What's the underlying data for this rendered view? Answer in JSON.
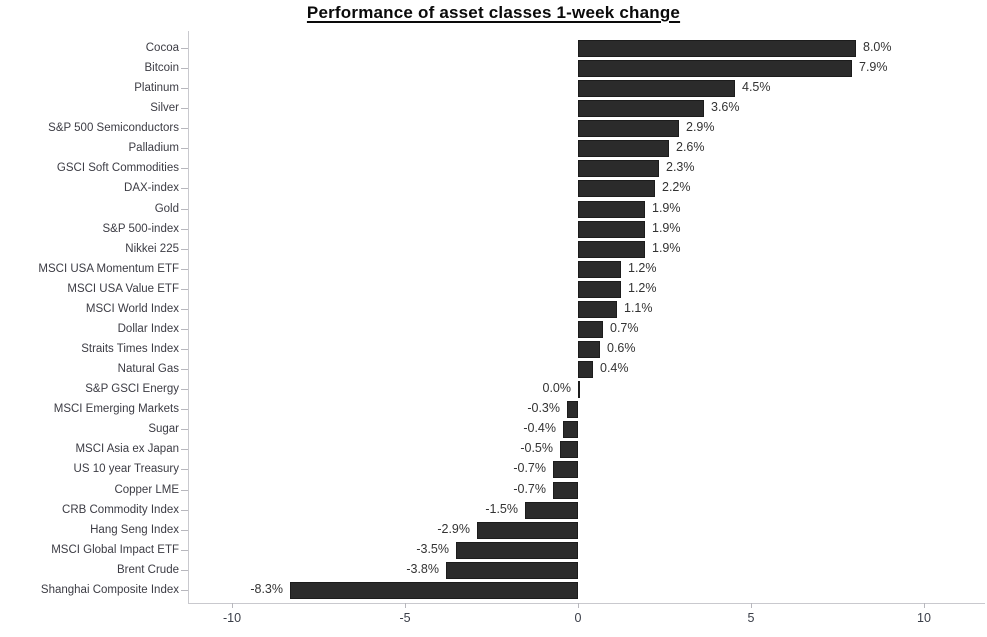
{
  "chart_data": {
    "type": "bar",
    "orientation": "horizontal",
    "title": "Performance of asset classes 1-week change",
    "xlabel": "",
    "ylabel": "",
    "xlim": [
      -11.3,
      11.8
    ],
    "x_ticks": [
      -10,
      -5,
      0,
      5,
      10
    ],
    "x_tick_labels": [
      "-10",
      "-5",
      "0",
      "5",
      "10"
    ],
    "grid": false,
    "legend": "none",
    "bar_color": "#2b2b2b",
    "bar_border_color": "#1c1c1c",
    "axis_color": "#c9c9ce",
    "categories": [
      "Cocoa",
      "Bitcoin",
      "Platinum",
      "Silver",
      "S&P 500 Semiconductors",
      "Palladium",
      "GSCI Soft Commodities",
      "DAX-index",
      "Gold",
      "S&P 500-index",
      "Nikkei 225",
      "MSCI USA Momentum ETF",
      "MSCI USA Value ETF",
      "MSCI World Index",
      "Dollar Index",
      "Straits Times Index",
      "Natural Gas",
      "S&P GSCI Energy",
      "MSCI Emerging Markets",
      "Sugar",
      "MSCI Asia ex Japan",
      "US 10 year Treasury",
      "Copper LME",
      "CRB Commodity Index",
      "Hang Seng Index",
      "MSCI Global Impact ETF",
      "Brent Crude",
      "Shanghai Composite Index"
    ],
    "values": [
      8.0,
      7.9,
      4.5,
      3.6,
      2.9,
      2.6,
      2.3,
      2.2,
      1.9,
      1.9,
      1.9,
      1.2,
      1.2,
      1.1,
      0.7,
      0.6,
      0.4,
      0.0,
      -0.3,
      -0.4,
      -0.5,
      -0.7,
      -0.7,
      -1.5,
      -2.9,
      -3.5,
      -3.8,
      -8.3
    ],
    "value_labels": [
      "8.0%",
      "7.9%",
      "4.5%",
      "3.6%",
      "2.9%",
      "2.6%",
      "2.3%",
      "2.2%",
      "1.9%",
      "1.9%",
      "1.9%",
      "1.2%",
      "1.2%",
      "1.1%",
      "0.7%",
      "0.6%",
      "0.4%",
      "0.0%",
      "-0.3%",
      "-0.4%",
      "-0.5%",
      "-0.7%",
      "-0.7%",
      "-1.5%",
      "-2.9%",
      "-3.5%",
      "-3.8%",
      "-8.3%"
    ]
  }
}
